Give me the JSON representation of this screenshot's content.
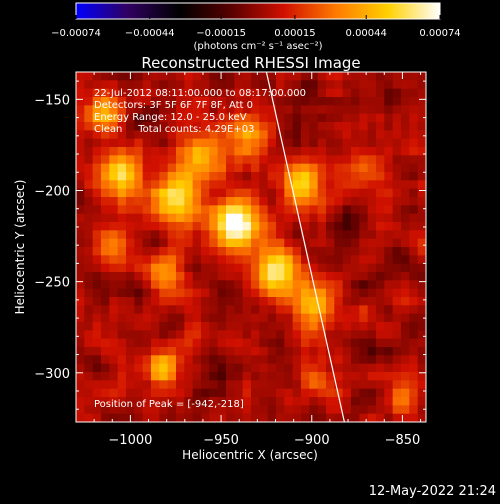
{
  "chart_data": {
    "type": "heatmap",
    "title": "Reconstructed RHESSI Image",
    "xlabel": "Heliocentric X (arcsec)",
    "ylabel": "Heliocentric Y (arcsec)",
    "xlim": [
      -1030,
      -837
    ],
    "ylim": [
      -327,
      -135
    ],
    "x_ticks": [
      -1000,
      -950,
      -900,
      -850
    ],
    "x_tick_labels": [
      "−1000",
      "−950",
      "−900",
      "−850"
    ],
    "y_ticks": [
      -150,
      -200,
      -250,
      -300
    ],
    "y_tick_labels": [
      "−150",
      "−200",
      "−250",
      "−300"
    ],
    "colorbar": {
      "range": [
        -0.00074,
        0.00074
      ],
      "tick_values": [
        -0.00074,
        -0.00044,
        -0.00015,
        0.00015,
        0.00044,
        0.00074
      ],
      "tick_labels": [
        "−0.00074",
        "−0.00044",
        "−0.00015",
        "0.00015",
        "0.00044",
        "0.00074"
      ],
      "unit_label": "(photons cm⁻² s⁻¹ asec⁻²)",
      "colors": [
        "#0000ff",
        "#300060",
        "#000000",
        "#5a0000",
        "#d01000",
        "#ff7a00",
        "#ffd000",
        "#ffffff"
      ]
    },
    "annotations": [
      "22-Jul-2012 08:11:00.000 to 08:17:00.000",
      "Detectors: 3F 5F 6F 7F 8F, Att 0",
      "Energy Range: 12.0 - 25.0 keV",
      "Clean     Total counts: 4.29E+03"
    ],
    "peak_label": "Position of Peak = [-942,-218]",
    "peak": [
      -942,
      -218
    ],
    "limb_line": [
      [
        -925,
        -135
      ],
      [
        -882,
        -327
      ]
    ],
    "sources": [
      {
        "x": -942,
        "y": -218,
        "amp": 0.00074,
        "sigma": 9
      },
      {
        "x": -975,
        "y": -205,
        "amp": 0.00058,
        "sigma": 10
      },
      {
        "x": -1005,
        "y": -192,
        "amp": 0.0005,
        "sigma": 9
      },
      {
        "x": -960,
        "y": -180,
        "amp": 0.0005,
        "sigma": 9
      },
      {
        "x": -935,
        "y": -168,
        "amp": 0.00045,
        "sigma": 8
      },
      {
        "x": -905,
        "y": -196,
        "amp": 0.00055,
        "sigma": 8
      },
      {
        "x": -920,
        "y": -245,
        "amp": 0.00058,
        "sigma": 9
      },
      {
        "x": -900,
        "y": -262,
        "amp": 0.0005,
        "sigma": 8
      },
      {
        "x": -1015,
        "y": -158,
        "amp": 0.0004,
        "sigma": 7
      },
      {
        "x": -980,
        "y": -245,
        "amp": 0.0003,
        "sigma": 7
      },
      {
        "x": -982,
        "y": -298,
        "amp": 0.00055,
        "sigma": 6
      },
      {
        "x": -900,
        "y": -304,
        "amp": 0.0003,
        "sigma": 6
      },
      {
        "x": -850,
        "y": -316,
        "amp": 0.0003,
        "sigma": 6
      },
      {
        "x": -870,
        "y": -188,
        "amp": 0.00025,
        "sigma": 7
      },
      {
        "x": -1010,
        "y": -228,
        "amp": 0.0003,
        "sigma": 7
      }
    ]
  },
  "footer": {
    "timestamp": "12-May-2022 21:24"
  }
}
